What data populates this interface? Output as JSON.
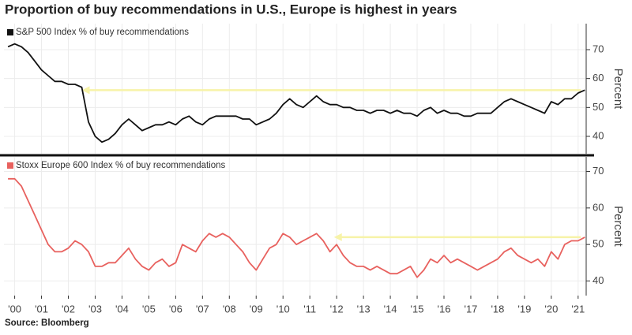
{
  "title": "Proportion of buy recommendations in U.S., Europe is highest in years",
  "source": "Source: Bloomberg",
  "chart_data": [
    {
      "type": "line",
      "ylabel": "Percent",
      "xlim": [
        1999.6,
        2021.3
      ],
      "ylim": [
        34,
        79
      ],
      "yticks": [
        40,
        50,
        60,
        70
      ],
      "grid": true,
      "legend": "top-left",
      "reference_arrow": {
        "value": 56,
        "x_from": 2002.5,
        "x_to": 2021.1,
        "color": "#f7f3a8"
      },
      "x": [
        1999.75,
        2000,
        2000.25,
        2000.5,
        2000.75,
        2001,
        2001.25,
        2001.5,
        2001.75,
        2002,
        2002.25,
        2002.5,
        2002.75,
        2003,
        2003.25,
        2003.5,
        2003.75,
        2004,
        2004.25,
        2004.5,
        2004.75,
        2005,
        2005.25,
        2005.5,
        2005.75,
        2006,
        2006.25,
        2006.5,
        2006.75,
        2007,
        2007.25,
        2007.5,
        2007.75,
        2008,
        2008.25,
        2008.5,
        2008.75,
        2009,
        2009.25,
        2009.5,
        2009.75,
        2010,
        2010.25,
        2010.5,
        2010.75,
        2011,
        2011.25,
        2011.5,
        2011.75,
        2012,
        2012.25,
        2012.5,
        2012.75,
        2013,
        2013.25,
        2013.5,
        2013.75,
        2014,
        2014.25,
        2014.5,
        2014.75,
        2015,
        2015.25,
        2015.5,
        2015.75,
        2016,
        2016.25,
        2016.5,
        2016.75,
        2017,
        2017.25,
        2017.5,
        2017.75,
        2018,
        2018.25,
        2018.5,
        2018.75,
        2019,
        2019.25,
        2019.5,
        2019.75,
        2020,
        2020.25,
        2020.5,
        2020.75,
        2021,
        2021.25
      ],
      "series": [
        {
          "name": "S&P 500 Index % of buy recommendations",
          "color": "#111111",
          "values": [
            71,
            72,
            71,
            69,
            66,
            63,
            61,
            59,
            59,
            58,
            58,
            57,
            45,
            40,
            38,
            39,
            41,
            44,
            46,
            44,
            42,
            43,
            44,
            44,
            45,
            44,
            46,
            47,
            45,
            44,
            46,
            47,
            47,
            47,
            47,
            46,
            46,
            44,
            45,
            46,
            48,
            51,
            53,
            51,
            50,
            52,
            54,
            52,
            51,
            51,
            50,
            50,
            49,
            49,
            48,
            49,
            49,
            48,
            49,
            48,
            48,
            47,
            49,
            50,
            48,
            49,
            48,
            48,
            47,
            47,
            48,
            48,
            48,
            50,
            52,
            53,
            52,
            51,
            50,
            49,
            48,
            52,
            51,
            53,
            53,
            55,
            56
          ]
        }
      ]
    },
    {
      "type": "line",
      "ylabel": "Percent",
      "xlim": [
        1999.6,
        2021.3
      ],
      "ylim": [
        36,
        74
      ],
      "yticks": [
        40,
        50,
        60,
        70
      ],
      "grid": true,
      "legend": "top-left",
      "reference_arrow": {
        "value": 52,
        "x_from": 2011.9,
        "x_to": 2021.1,
        "color": "#f7f3a8"
      },
      "xticks": [
        {
          "value": 2000,
          "label": "'00"
        },
        {
          "value": 2001,
          "label": "'01"
        },
        {
          "value": 2002,
          "label": "'02"
        },
        {
          "value": 2003,
          "label": "'03"
        },
        {
          "value": 2004,
          "label": "'04"
        },
        {
          "value": 2005,
          "label": "'05"
        },
        {
          "value": 2006,
          "label": "'06"
        },
        {
          "value": 2007,
          "label": "'07"
        },
        {
          "value": 2008,
          "label": "'08"
        },
        {
          "value": 2009,
          "label": "'09"
        },
        {
          "value": 2010,
          "label": "'10"
        },
        {
          "value": 2011,
          "label": "'11"
        },
        {
          "value": 2012,
          "label": "'12"
        },
        {
          "value": 2013,
          "label": "'13"
        },
        {
          "value": 2014,
          "label": "'14"
        },
        {
          "value": 2015,
          "label": "'15"
        },
        {
          "value": 2016,
          "label": "'16"
        },
        {
          "value": 2017,
          "label": "'17"
        },
        {
          "value": 2018,
          "label": "'18"
        },
        {
          "value": 2019,
          "label": "'19"
        },
        {
          "value": 2020,
          "label": "'20"
        },
        {
          "value": 2021,
          "label": "'21"
        }
      ],
      "x": [
        1999.75,
        2000,
        2000.25,
        2000.5,
        2000.75,
        2001,
        2001.25,
        2001.5,
        2001.75,
        2002,
        2002.25,
        2002.5,
        2002.75,
        2003,
        2003.25,
        2003.5,
        2003.75,
        2004,
        2004.25,
        2004.5,
        2004.75,
        2005,
        2005.25,
        2005.5,
        2005.75,
        2006,
        2006.25,
        2006.5,
        2006.75,
        2007,
        2007.25,
        2007.5,
        2007.75,
        2008,
        2008.25,
        2008.5,
        2008.75,
        2009,
        2009.25,
        2009.5,
        2009.75,
        2010,
        2010.25,
        2010.5,
        2010.75,
        2011,
        2011.25,
        2011.5,
        2011.75,
        2012,
        2012.25,
        2012.5,
        2012.75,
        2013,
        2013.25,
        2013.5,
        2013.75,
        2014,
        2014.25,
        2014.5,
        2014.75,
        2015,
        2015.25,
        2015.5,
        2015.75,
        2016,
        2016.25,
        2016.5,
        2016.75,
        2017,
        2017.25,
        2017.5,
        2017.75,
        2018,
        2018.25,
        2018.5,
        2018.75,
        2019,
        2019.25,
        2019.5,
        2019.75,
        2020,
        2020.25,
        2020.5,
        2020.75,
        2021,
        2021.25
      ],
      "series": [
        {
          "name": "Stoxx Europe 600 Index % of buy recommendations",
          "color": "#e8615e",
          "values": [
            68,
            68,
            66,
            62,
            58,
            54,
            50,
            48,
            48,
            49,
            51,
            50,
            48,
            44,
            44,
            45,
            45,
            47,
            49,
            46,
            44,
            43,
            45,
            46,
            44,
            45,
            50,
            49,
            48,
            51,
            53,
            52,
            53,
            52,
            50,
            48,
            45,
            43,
            46,
            49,
            50,
            53,
            52,
            50,
            51,
            52,
            53,
            51,
            48,
            50,
            47,
            45,
            44,
            44,
            43,
            44,
            43,
            42,
            42,
            43,
            44,
            41,
            43,
            46,
            45,
            47,
            45,
            46,
            45,
            44,
            43,
            44,
            45,
            46,
            48,
            49,
            47,
            46,
            45,
            46,
            44,
            48,
            46,
            50,
            51,
            51,
            52
          ]
        }
      ]
    }
  ]
}
